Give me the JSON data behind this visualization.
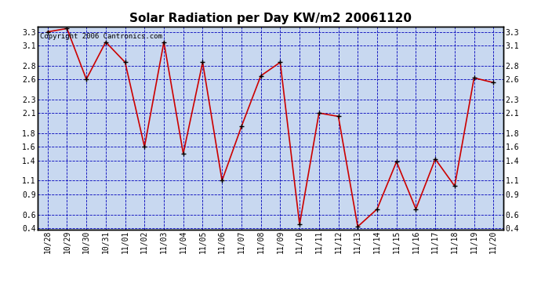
{
  "title": "Solar Radiation per Day KW/m2 20061120",
  "copyright_text": "Copyright 2006 Cantronics.com",
  "dates": [
    "10/28",
    "10/29",
    "10/30",
    "10/31",
    "11/01",
    "11/02",
    "11/03",
    "11/04",
    "11/05",
    "11/06",
    "11/07",
    "11/08",
    "11/09",
    "11/10",
    "11/11",
    "11/12",
    "11/13",
    "11/14",
    "11/15",
    "11/16",
    "11/17",
    "11/18",
    "11/19",
    "11/20"
  ],
  "values": [
    3.3,
    3.35,
    2.6,
    3.15,
    2.85,
    1.6,
    3.15,
    1.5,
    2.85,
    1.1,
    1.9,
    2.65,
    2.85,
    0.45,
    2.1,
    2.05,
    0.42,
    0.68,
    1.38,
    0.68,
    1.42,
    1.02,
    2.62,
    2.55
  ],
  "line_color": "#cc0000",
  "marker_color": "#000000",
  "background_color": "#c8d8f0",
  "grid_color": "#0000bb",
  "title_color": "#000000",
  "ylim_min": 0.38,
  "ylim_max": 3.38,
  "yticks": [
    0.4,
    0.6,
    0.9,
    1.1,
    1.4,
    1.6,
    1.8,
    2.1,
    2.3,
    2.6,
    2.8,
    3.1,
    3.3
  ],
  "title_fontsize": 11,
  "copyright_fontsize": 6.5,
  "tick_fontsize": 7,
  "fig_width": 6.9,
  "fig_height": 3.75,
  "dpi": 100
}
